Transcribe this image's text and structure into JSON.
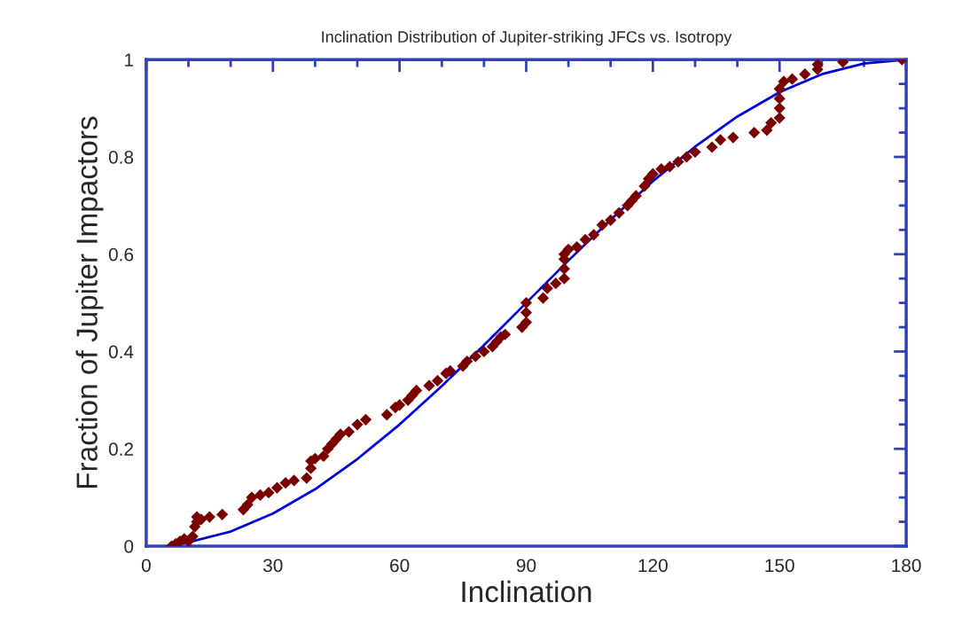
{
  "chart_data": {
    "type": "scatter",
    "title": "Inclination Distribution of Jupiter-striking JFCs vs. Isotropy",
    "xlabel": "Inclination",
    "ylabel": "Fraction of Jupiter Impactors",
    "xlim": [
      0,
      180
    ],
    "ylim": [
      0,
      1
    ],
    "xticks": [
      0,
      30,
      60,
      90,
      120,
      150,
      180
    ],
    "yticks": [
      0,
      0.2,
      0.4,
      0.6,
      0.8,
      1
    ],
    "grid": false,
    "legend": false,
    "series": [
      {
        "color": "#7a0000",
        "marker": "diamond",
        "x": [
          6,
          7,
          8,
          9,
          10,
          11,
          11.5,
          12,
          12,
          13,
          15,
          18,
          23,
          24,
          25,
          27,
          29,
          31,
          33,
          35,
          38,
          39,
          39,
          40,
          42,
          43,
          44,
          45,
          46,
          48,
          50,
          52,
          57,
          59,
          60,
          62,
          63,
          64,
          67,
          69,
          71,
          72,
          75,
          76,
          78,
          80,
          82,
          83,
          84,
          85,
          89,
          90,
          90,
          90,
          94,
          95,
          97,
          99,
          99,
          99,
          99,
          100,
          102,
          104,
          106,
          108,
          110,
          112,
          114,
          115,
          116,
          118,
          119,
          120,
          122,
          124,
          126,
          128,
          130,
          134,
          136,
          139,
          144,
          147,
          148,
          150,
          150,
          150,
          150,
          151,
          153,
          156,
          159,
          159,
          165,
          179
        ],
        "values": [
          0,
          0.005,
          0.01,
          0.015,
          0.01,
          0.02,
          0.04,
          0.05,
          0.06,
          0.055,
          0.06,
          0.065,
          0.075,
          0.085,
          0.1,
          0.105,
          0.11,
          0.12,
          0.13,
          0.135,
          0.14,
          0.16,
          0.175,
          0.18,
          0.185,
          0.2,
          0.21,
          0.22,
          0.23,
          0.235,
          0.25,
          0.26,
          0.27,
          0.285,
          0.29,
          0.3,
          0.31,
          0.32,
          0.33,
          0.34,
          0.355,
          0.36,
          0.37,
          0.38,
          0.39,
          0.4,
          0.41,
          0.42,
          0.43,
          0.435,
          0.45,
          0.46,
          0.48,
          0.5,
          0.51,
          0.53,
          0.54,
          0.55,
          0.57,
          0.59,
          0.6,
          0.61,
          0.615,
          0.63,
          0.64,
          0.66,
          0.67,
          0.685,
          0.7,
          0.71,
          0.72,
          0.74,
          0.755,
          0.765,
          0.775,
          0.78,
          0.79,
          0.8,
          0.81,
          0.82,
          0.835,
          0.84,
          0.85,
          0.855,
          0.87,
          0.88,
          0.9,
          0.92,
          0.94,
          0.955,
          0.96,
          0.97,
          0.98,
          0.99,
          0.995,
          1
        ]
      },
      {
        "type": "line",
        "color": "#0000dd",
        "marker": "none",
        "line_style": "solid",
        "x": [
          8,
          10,
          20,
          30,
          40,
          50,
          60,
          70,
          80,
          90,
          100,
          110,
          120,
          130,
          140,
          150,
          160,
          170,
          180
        ],
        "values": [
          0.005,
          0.008,
          0.03,
          0.067,
          0.117,
          0.179,
          0.25,
          0.329,
          0.413,
          0.5,
          0.587,
          0.671,
          0.75,
          0.821,
          0.883,
          0.933,
          0.97,
          0.992,
          1
        ]
      }
    ]
  }
}
